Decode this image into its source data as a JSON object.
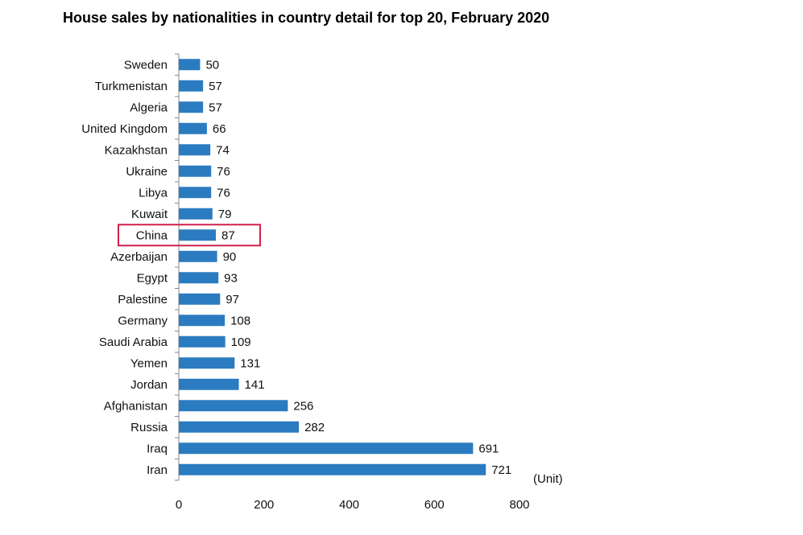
{
  "chart_data": {
    "type": "bar",
    "orientation": "horizontal",
    "title": "House sales by nationalities in country detail for top 20, February 2020",
    "unit_label": "(Unit)",
    "categories": [
      "Sweden",
      "Turkmenistan",
      "Algeria",
      "United Kingdom",
      "Kazakhstan",
      "Ukraine",
      "Libya",
      "Kuwait",
      "China",
      "Azerbaijan",
      "Egypt",
      "Palestine",
      "Germany",
      "Saudi Arabia",
      "Yemen",
      "Jordan",
      "Afghanistan",
      "Russia",
      "Iraq",
      "Iran"
    ],
    "values": [
      50,
      57,
      57,
      66,
      74,
      76,
      76,
      79,
      87,
      90,
      93,
      97,
      108,
      109,
      131,
      141,
      256,
      282,
      691,
      721
    ],
    "xlim": [
      0,
      800
    ],
    "xticks": [
      0,
      200,
      400,
      600,
      800
    ],
    "bar_color": "#2b7bc0",
    "highlight": {
      "category": "China",
      "color": "#d0204c"
    },
    "grid": false,
    "legend": "none"
  }
}
